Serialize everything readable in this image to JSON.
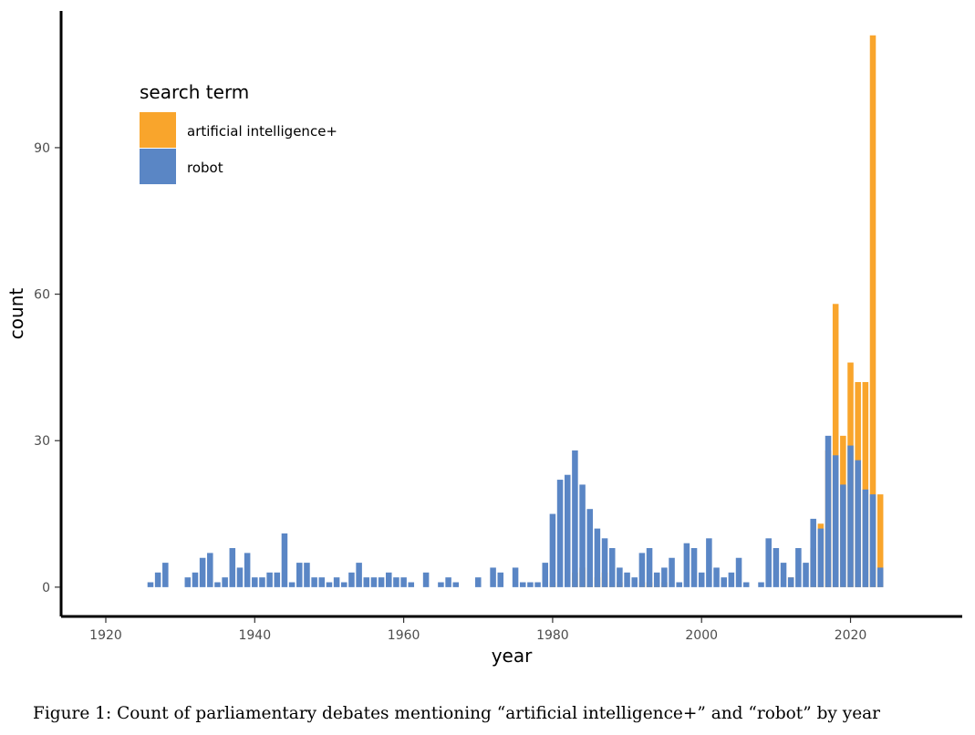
{
  "caption": "Figure 1: Count of parliamentary debates mentioning “artificial intelligence+” and “robot” by year",
  "chart_data": {
    "type": "bar",
    "xlabel": "year",
    "ylabel": "count",
    "xlim": [
      1914,
      2035
    ],
    "ylim": [
      -6,
      118
    ],
    "x_ticks": [
      1920,
      1940,
      1960,
      1980,
      2000,
      2020
    ],
    "y_ticks": [
      0,
      30,
      60,
      90
    ],
    "grid": false,
    "legend": {
      "title": "search term",
      "placement": "top-left",
      "entries": [
        "artificial intelligence+",
        "robot"
      ]
    },
    "series": [
      {
        "name": "artificial intelligence+",
        "color": "#F9A52C",
        "points": [
          [
            1980,
            1
          ],
          [
            1983,
            3
          ],
          [
            1984,
            4
          ],
          [
            1985,
            4
          ],
          [
            1986,
            2
          ],
          [
            1987,
            3
          ],
          [
            1988,
            1
          ],
          [
            1989,
            1
          ],
          [
            1992,
            1
          ],
          [
            1993,
            1
          ],
          [
            1994,
            2
          ],
          [
            1995,
            1
          ],
          [
            2012,
            2
          ],
          [
            2015,
            8
          ],
          [
            2016,
            13
          ],
          [
            2017,
            28
          ],
          [
            2018,
            58
          ],
          [
            2019,
            31
          ],
          [
            2020,
            46
          ],
          [
            2021,
            42
          ],
          [
            2022,
            42
          ],
          [
            2023,
            113
          ],
          [
            2024,
            19
          ]
        ]
      },
      {
        "name": "robot",
        "color": "#5A86C5",
        "points": [
          [
            1926,
            1
          ],
          [
            1927,
            3
          ],
          [
            1928,
            5
          ],
          [
            1931,
            2
          ],
          [
            1932,
            3
          ],
          [
            1933,
            6
          ],
          [
            1934,
            7
          ],
          [
            1935,
            1
          ],
          [
            1936,
            2
          ],
          [
            1937,
            8
          ],
          [
            1938,
            4
          ],
          [
            1939,
            7
          ],
          [
            1940,
            2
          ],
          [
            1941,
            2
          ],
          [
            1942,
            3
          ],
          [
            1943,
            3
          ],
          [
            1944,
            11
          ],
          [
            1945,
            1
          ],
          [
            1946,
            5
          ],
          [
            1947,
            5
          ],
          [
            1948,
            2
          ],
          [
            1949,
            2
          ],
          [
            1950,
            1
          ],
          [
            1951,
            2
          ],
          [
            1952,
            1
          ],
          [
            1953,
            3
          ],
          [
            1954,
            5
          ],
          [
            1955,
            2
          ],
          [
            1956,
            2
          ],
          [
            1957,
            2
          ],
          [
            1958,
            3
          ],
          [
            1959,
            2
          ],
          [
            1960,
            2
          ],
          [
            1961,
            1
          ],
          [
            1963,
            3
          ],
          [
            1965,
            1
          ],
          [
            1966,
            2
          ],
          [
            1967,
            1
          ],
          [
            1970,
            2
          ],
          [
            1972,
            4
          ],
          [
            1973,
            3
          ],
          [
            1975,
            4
          ],
          [
            1976,
            1
          ],
          [
            1977,
            1
          ],
          [
            1978,
            1
          ],
          [
            1979,
            5
          ],
          [
            1980,
            15
          ],
          [
            1981,
            22
          ],
          [
            1982,
            23
          ],
          [
            1983,
            28
          ],
          [
            1984,
            21
          ],
          [
            1985,
            16
          ],
          [
            1986,
            12
          ],
          [
            1987,
            10
          ],
          [
            1988,
            8
          ],
          [
            1989,
            4
          ],
          [
            1990,
            3
          ],
          [
            1991,
            2
          ],
          [
            1992,
            7
          ],
          [
            1993,
            8
          ],
          [
            1994,
            3
          ],
          [
            1995,
            4
          ],
          [
            1996,
            6
          ],
          [
            1997,
            1
          ],
          [
            1998,
            9
          ],
          [
            1999,
            8
          ],
          [
            2000,
            3
          ],
          [
            2001,
            10
          ],
          [
            2002,
            4
          ],
          [
            2003,
            2
          ],
          [
            2004,
            3
          ],
          [
            2005,
            6
          ],
          [
            2006,
            1
          ],
          [
            2008,
            1
          ],
          [
            2009,
            10
          ],
          [
            2010,
            8
          ],
          [
            2011,
            5
          ],
          [
            2012,
            2
          ],
          [
            2013,
            8
          ],
          [
            2014,
            5
          ],
          [
            2015,
            14
          ],
          [
            2016,
            12
          ],
          [
            2017,
            31
          ],
          [
            2018,
            27
          ],
          [
            2019,
            21
          ],
          [
            2020,
            29
          ],
          [
            2021,
            26
          ],
          [
            2022,
            20
          ],
          [
            2023,
            19
          ],
          [
            2024,
            4
          ]
        ]
      }
    ]
  }
}
